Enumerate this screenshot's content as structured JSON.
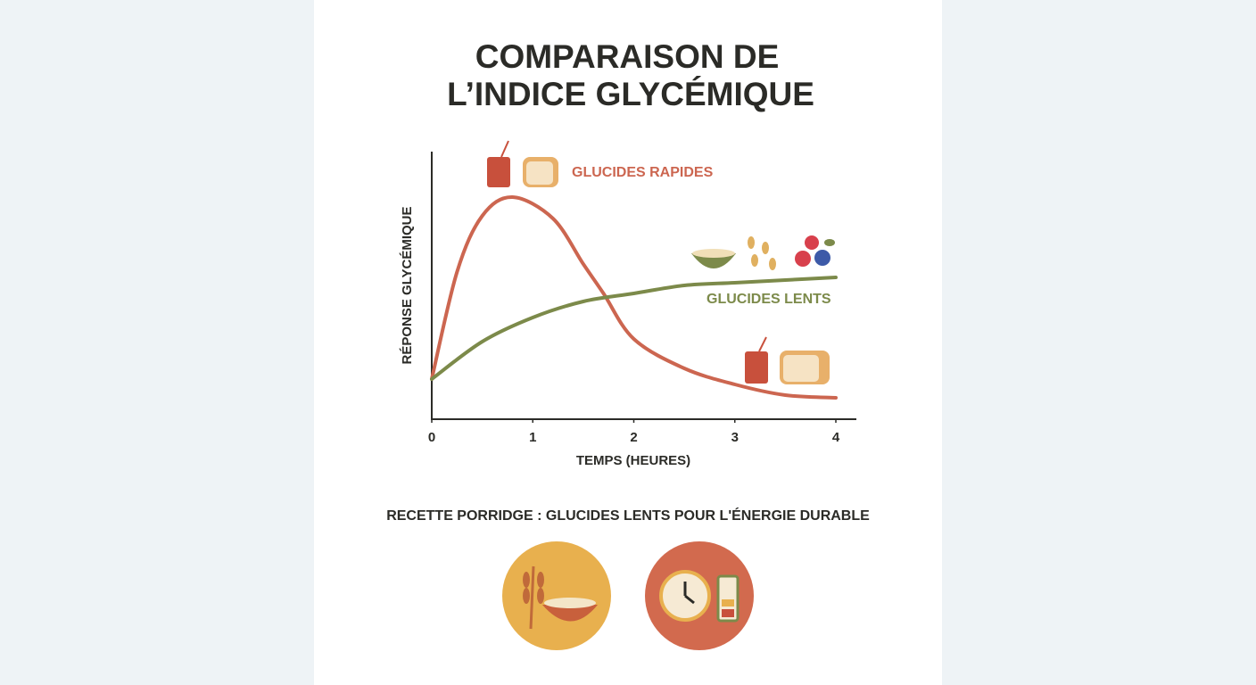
{
  "chart_data": {
    "type": "line",
    "title": [
      "COMPARAISON DE",
      "L’INDICE GLYCÉMIQUE"
    ],
    "y_label": "RÉPONSE GLYCÉMIQUE",
    "x_label": "TEMPS (HEURES)",
    "xlim": [
      0,
      4
    ],
    "xticks": [
      0,
      1,
      2,
      3,
      4
    ],
    "ylim": [
      0,
      100
    ],
    "series": [
      {
        "name": "GLUCIDES RAPIDES",
        "color": "#cc6650",
        "x": [
          0,
          0.25,
          0.5,
          0.8,
          1.2,
          1.5,
          1.7,
          2,
          2.5,
          3,
          3.5,
          4
        ],
        "values": [
          15,
          55,
          76,
          83,
          75,
          58,
          47,
          30,
          19,
          13,
          9,
          8
        ]
      },
      {
        "name": "GLUCIDES LENTS",
        "color": "#7c8a4a",
        "x": [
          0,
          0.5,
          1,
          1.5,
          2,
          2.5,
          3,
          3.5,
          4
        ],
        "values": [
          15,
          29,
          38,
          44,
          47,
          50,
          51,
          52,
          53
        ]
      }
    ],
    "annotation": "RECETTE PORRIDGE : GLUCIDES LENTS POUR L'ÉNERGIE DURABLE"
  }
}
